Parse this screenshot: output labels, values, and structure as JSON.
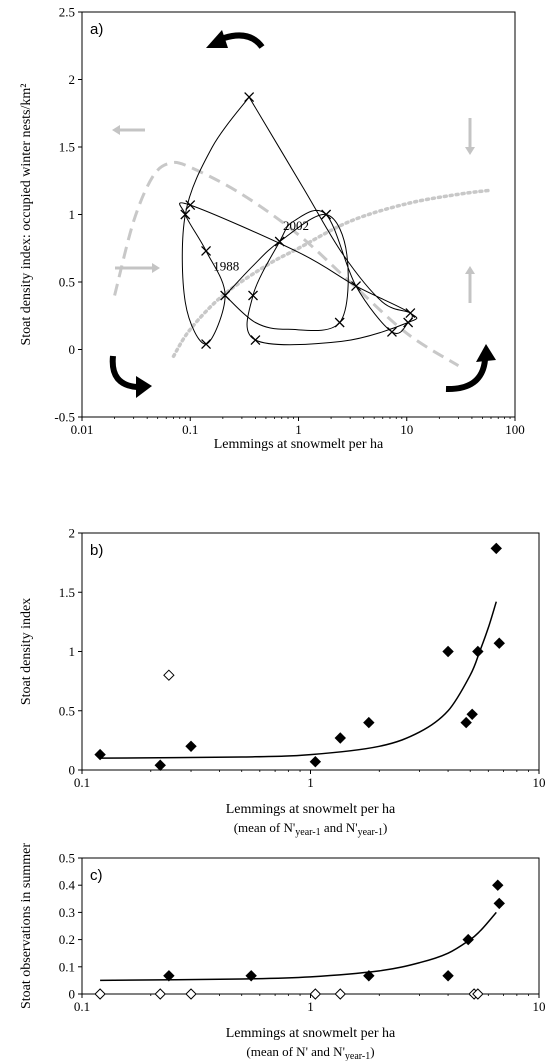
{
  "chart_data": [
    {
      "panel": "a)",
      "type": "scatter",
      "log_x": true,
      "xlim": [
        0.01,
        100
      ],
      "ylim": [
        -0.5,
        2.5
      ],
      "x_ticks": [
        "0.01",
        "0.1",
        "1",
        "10",
        "100"
      ],
      "y_ticks": [
        "-0.5",
        "0",
        "0.5",
        "1",
        "1.5",
        "2",
        "2.5"
      ],
      "xlabel": "Lemmings at snowmelt per ha",
      "ylabel": "Stoat density index: occupied winter nests/km²",
      "points": [
        {
          "x": 0.35,
          "y": 1.87
        },
        {
          "x": 0.09,
          "y": 1.0
        },
        {
          "x": 0.1,
          "y": 1.07
        },
        {
          "x": 0.14,
          "y": 0.73
        },
        {
          "x": 0.21,
          "y": 0.4
        },
        {
          "x": 0.38,
          "y": 0.4
        },
        {
          "x": 0.67,
          "y": 0.8
        },
        {
          "x": 1.8,
          "y": 1.0
        },
        {
          "x": 3.4,
          "y": 0.47
        },
        {
          "x": 2.4,
          "y": 0.2
        },
        {
          "x": 0.14,
          "y": 0.04
        },
        {
          "x": 0.4,
          "y": 0.07
        },
        {
          "x": 7.3,
          "y": 0.13
        },
        {
          "x": 10.3,
          "y": 0.2
        },
        {
          "x": 10.8,
          "y": 0.27
        }
      ],
      "annotations": [
        {
          "text": "2002",
          "x": 0.75,
          "y": 0.9
        },
        {
          "text": "1988",
          "x": 0.17,
          "y": 0.6
        }
      ],
      "isoclines": [
        {
          "style": "dashed",
          "x": [
            0.02,
            0.03,
            0.045,
            0.065,
            0.1,
            0.3,
            1,
            3,
            10,
            30
          ],
          "y": [
            0.4,
            0.95,
            1.28,
            1.38,
            1.35,
            1.15,
            0.85,
            0.5,
            0.12,
            -0.12
          ]
        },
        {
          "style": "dotted",
          "x": [
            0.07,
            0.1,
            0.2,
            0.5,
            1,
            3,
            10,
            30,
            60
          ],
          "y": [
            -0.05,
            0.15,
            0.4,
            0.62,
            0.75,
            0.95,
            1.08,
            1.15,
            1.18
          ]
        }
      ],
      "grid": false,
      "legend": "none"
    },
    {
      "panel": "b)",
      "type": "scatter",
      "log_x": true,
      "xlim": [
        0.1,
        10
      ],
      "ylim": [
        0,
        2
      ],
      "x_ticks": [
        "0.1",
        "1",
        "10"
      ],
      "y_ticks": [
        "0",
        "0.5",
        "1",
        "1.5",
        "2"
      ],
      "xlabel": "Lemmings at snowmelt per ha",
      "xlabel_line2": {
        "pre": "(mean of N'",
        "sub1": "year-1",
        "mid": " and N'",
        "sub2": "year-1",
        "post": ")"
      },
      "ylabel": "Stoat density index",
      "filled_points": [
        {
          "x": 0.12,
          "y": 0.13
        },
        {
          "x": 0.22,
          "y": 0.04
        },
        {
          "x": 0.3,
          "y": 0.2
        },
        {
          "x": 1.05,
          "y": 0.07
        },
        {
          "x": 1.35,
          "y": 0.27
        },
        {
          "x": 1.8,
          "y": 0.4
        },
        {
          "x": 4.0,
          "y": 1.0
        },
        {
          "x": 4.8,
          "y": 0.4
        },
        {
          "x": 5.1,
          "y": 0.47
        },
        {
          "x": 5.4,
          "y": 1.0
        },
        {
          "x": 6.5,
          "y": 1.87
        },
        {
          "x": 6.7,
          "y": 1.07
        }
      ],
      "open_points": [
        {
          "x": 0.24,
          "y": 0.8
        }
      ],
      "fit_curve": {
        "x": [
          0.12,
          0.5,
          1,
          2,
          3,
          4,
          5,
          5.5,
          6,
          6.5
        ],
        "y": [
          0.1,
          0.11,
          0.13,
          0.2,
          0.32,
          0.5,
          0.8,
          1.0,
          1.2,
          1.42
        ]
      },
      "grid": false,
      "legend": "none"
    },
    {
      "panel": "c)",
      "type": "scatter",
      "log_x": true,
      "xlim": [
        0.1,
        10
      ],
      "ylim": [
        0,
        0.5
      ],
      "x_ticks": [
        "0.1",
        "1",
        "10"
      ],
      "y_ticks": [
        "0",
        "0.1",
        "0.2",
        "0.3",
        "0.4",
        "0.5"
      ],
      "xlabel": "Lemmings at snowmelt per ha",
      "xlabel_line2": {
        "pre": "(mean of N' and N'",
        "sub1": "year-1",
        "mid": "",
        "sub2": "",
        "post": ")"
      },
      "ylabel": "Stoat observations in summer",
      "filled_points": [
        {
          "x": 0.24,
          "y": 0.067
        },
        {
          "x": 0.55,
          "y": 0.067
        },
        {
          "x": 1.8,
          "y": 0.067
        },
        {
          "x": 4.0,
          "y": 0.067
        },
        {
          "x": 4.9,
          "y": 0.2
        },
        {
          "x": 6.6,
          "y": 0.4
        },
        {
          "x": 6.7,
          "y": 0.333
        }
      ],
      "open_points": [
        {
          "x": 0.12,
          "y": 0
        },
        {
          "x": 0.22,
          "y": 0
        },
        {
          "x": 0.3,
          "y": 0
        },
        {
          "x": 1.05,
          "y": 0
        },
        {
          "x": 1.35,
          "y": 0
        },
        {
          "x": 5.2,
          "y": 0
        },
        {
          "x": 5.4,
          "y": 0
        }
      ],
      "fit_curve": {
        "x": [
          0.12,
          0.5,
          1,
          2,
          3,
          4,
          5,
          5.5,
          6,
          6.5
        ],
        "y": [
          0.05,
          0.055,
          0.063,
          0.085,
          0.115,
          0.15,
          0.2,
          0.23,
          0.265,
          0.3
        ]
      },
      "grid": false,
      "legend": "none"
    }
  ]
}
